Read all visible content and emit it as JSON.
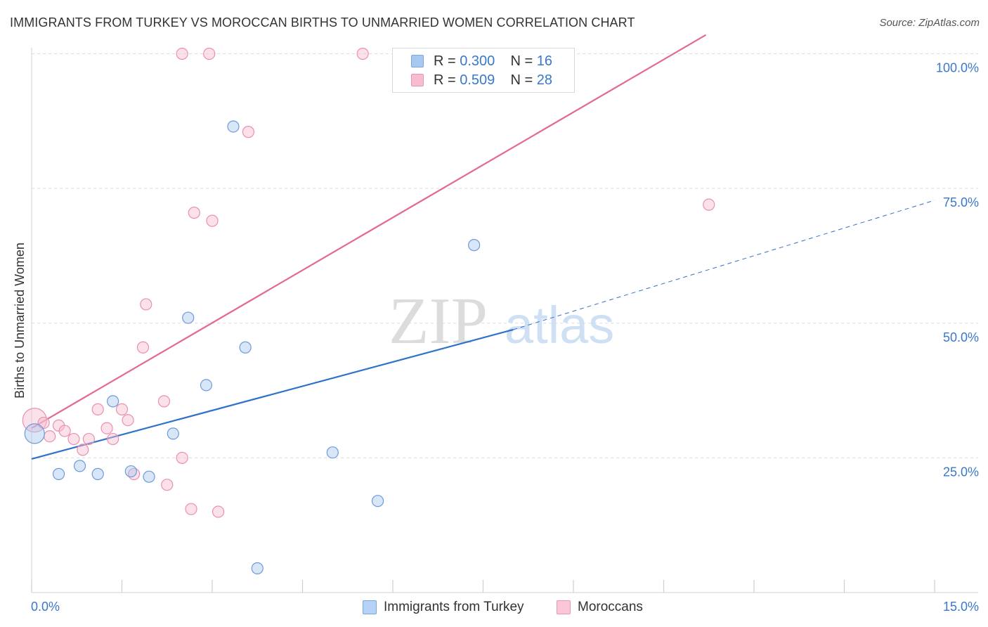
{
  "header": {
    "title": "IMMIGRANTS FROM TURKEY VS MOROCCAN BIRTHS TO UNMARRIED WOMEN CORRELATION CHART",
    "source": "Source: ZipAtlas.com"
  },
  "watermark": {
    "zip": "ZIP",
    "atlas": "atlas"
  },
  "stats_legend": [
    {
      "r_label": "R =",
      "r_value": "0.300",
      "n_label": "N =",
      "n_value": "16",
      "color": "#a9c8f0",
      "border": "#7aa6e0"
    },
    {
      "r_label": "R =",
      "r_value": "0.509",
      "n_label": "N =",
      "n_value": "28",
      "color": "#f7bcd0",
      "border": "#ee94b3"
    }
  ],
  "bottom_legend": [
    {
      "label": "Immigrants from Turkey",
      "color": "#b7d2f4",
      "border": "#7aa6e0"
    },
    {
      "label": "Moroccans",
      "color": "#f9c8d8",
      "border": "#ee94b3"
    }
  ],
  "colors": {
    "blue_line": "#2f72c9",
    "pink_line": "#e4698f",
    "blue_point_fill": "rgba(170,200,240,0.45)",
    "blue_point_stroke": "#6b9bd8",
    "pink_point_fill": "rgba(247,188,208,0.45)",
    "pink_point_stroke": "#ec8fae",
    "axis_label": "#3a78c9",
    "grid": "#dcdcdc"
  },
  "chart_data": {
    "type": "scatter",
    "title": "IMMIGRANTS FROM TURKEY VS MOROCCAN BIRTHS TO UNMARRIED WOMEN CORRELATION CHART",
    "xlabel": "",
    "ylabel": "Births to Unmarried Women",
    "xlim": [
      0,
      15
    ],
    "ylim": [
      0,
      100
    ],
    "x_tick_labels": [
      "0.0%",
      "15.0%"
    ],
    "y_ticks": [
      25,
      50,
      75,
      100
    ],
    "y_tick_labels": [
      "25.0%",
      "50.0%",
      "75.0%",
      "100.0%"
    ],
    "grid": "horizontal dashed",
    "legend_position": "top-center",
    "series": [
      {
        "name": "Immigrants from Turkey",
        "x": [
          0.05,
          0.45,
          0.8,
          1.1,
          1.35,
          1.65,
          1.95,
          2.35,
          2.6,
          2.9,
          3.35,
          3.55,
          3.75,
          5.0,
          5.75,
          7.35
        ],
        "y": [
          29.5,
          22.0,
          23.5,
          22.0,
          35.5,
          22.5,
          21.5,
          29.5,
          51.0,
          38.5,
          86.5,
          45.5,
          4.5,
          26.0,
          17.0,
          64.5
        ],
        "trend": {
          "x": [
            0,
            8.0
          ],
          "y": [
            24.8,
            48.8
          ],
          "dashed_x": [
            8.0,
            15.0
          ],
          "dashed_y": [
            48.8,
            72.8
          ]
        }
      },
      {
        "name": "Moroccans",
        "x": [
          0.05,
          0.2,
          0.3,
          0.45,
          0.55,
          0.7,
          0.85,
          0.95,
          1.1,
          1.25,
          1.35,
          1.5,
          1.6,
          1.7,
          1.85,
          1.9,
          2.2,
          2.25,
          2.5,
          2.65,
          2.7,
          3.0,
          3.1,
          3.6,
          5.5,
          11.25,
          2.5,
          2.95
        ],
        "y": [
          32.0,
          31.5,
          29.0,
          31.0,
          30.0,
          28.5,
          26.5,
          28.5,
          34.0,
          30.5,
          28.5,
          34.0,
          32.0,
          22.0,
          45.5,
          53.5,
          35.5,
          20.0,
          25.0,
          15.5,
          70.5,
          69.0,
          15.0,
          85.5,
          100.0,
          72.0,
          100.0,
          100.0
        ],
        "trend": {
          "x": [
            0,
            11.2
          ],
          "y": [
            30.5,
            103.5
          ]
        }
      }
    ]
  }
}
